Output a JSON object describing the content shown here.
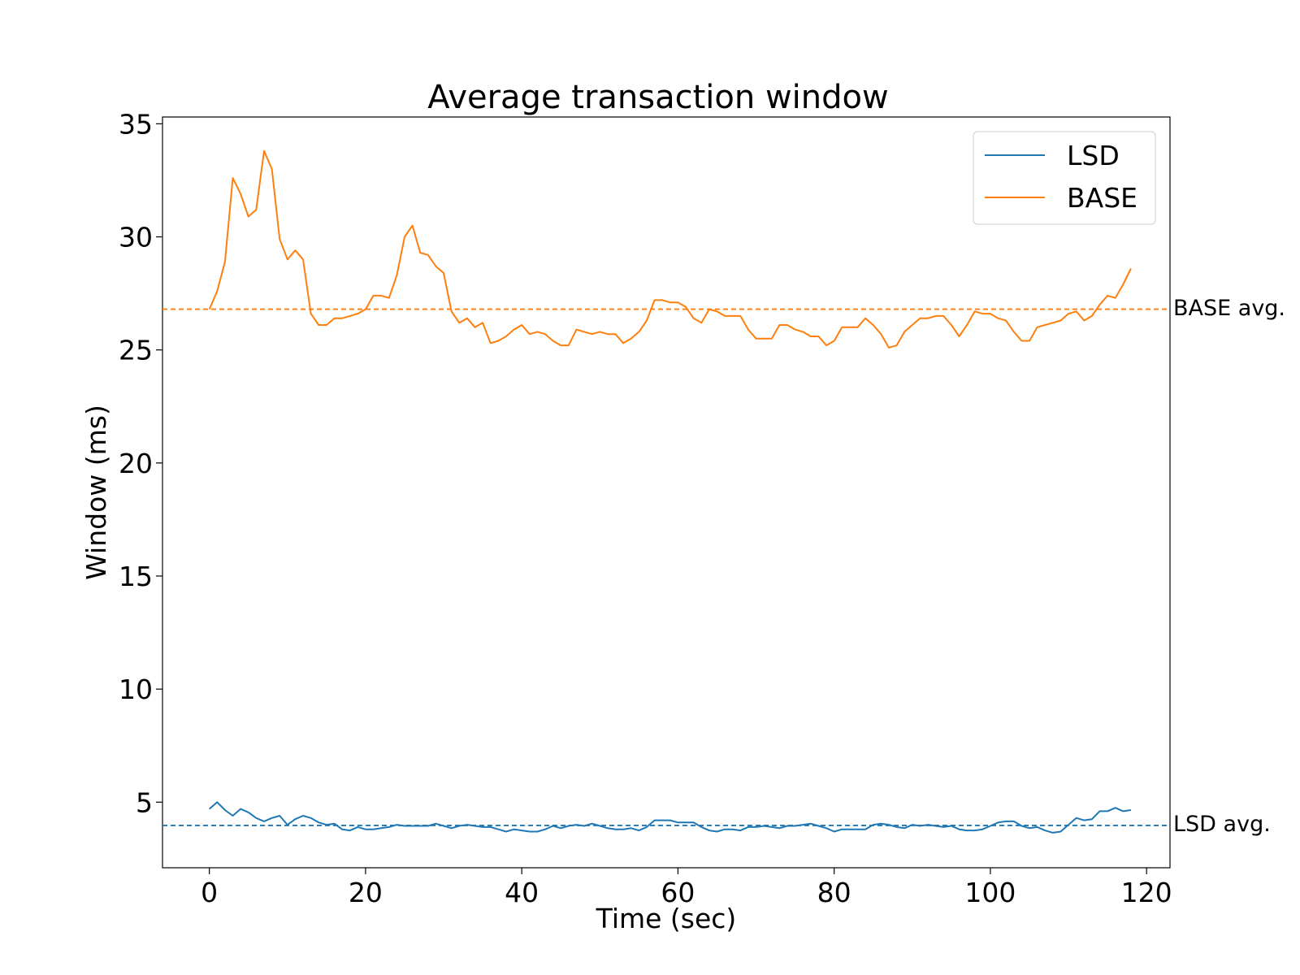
{
  "chart_data": {
    "type": "line",
    "title": "Average transaction window",
    "xlabel": "Time (sec)",
    "ylabel": "Window (ms)",
    "xlim": [
      -6,
      123
    ],
    "ylim": [
      2.1,
      35.3
    ],
    "xticks": [
      0,
      20,
      40,
      60,
      80,
      100,
      120
    ],
    "yticks": [
      5,
      10,
      15,
      20,
      25,
      30,
      35
    ],
    "grid": false,
    "legend_position": "top-right",
    "series": [
      {
        "name": "LSD",
        "color": "#1f77b4",
        "x": [
          0,
          1,
          2,
          3,
          4,
          5,
          6,
          7,
          8,
          9,
          10,
          11,
          12,
          13,
          14,
          15,
          16,
          17,
          18,
          19,
          20,
          21,
          22,
          23,
          24,
          25,
          26,
          27,
          28,
          29,
          30,
          31,
          32,
          33,
          34,
          35,
          36,
          37,
          38,
          39,
          40,
          41,
          42,
          43,
          44,
          45,
          46,
          47,
          48,
          49,
          50,
          51,
          52,
          53,
          54,
          55,
          56,
          57,
          58,
          59,
          60,
          61,
          62,
          63,
          64,
          65,
          66,
          67,
          68,
          69,
          70,
          71,
          72,
          73,
          74,
          75,
          76,
          77,
          78,
          79,
          80,
          81,
          82,
          83,
          84,
          85,
          86,
          87,
          88,
          89,
          90,
          91,
          92,
          93,
          94,
          95,
          96,
          97,
          98,
          99,
          100,
          101,
          102,
          103,
          104,
          105,
          106,
          107,
          108,
          109,
          110,
          111,
          112,
          113,
          114,
          115,
          116,
          117,
          118
        ],
        "y": [
          4.7,
          5.0,
          4.65,
          4.4,
          4.7,
          4.55,
          4.3,
          4.15,
          4.3,
          4.4,
          4.0,
          4.25,
          4.4,
          4.3,
          4.1,
          4.0,
          4.05,
          3.8,
          3.75,
          3.9,
          3.8,
          3.8,
          3.85,
          3.9,
          4.0,
          3.95,
          3.95,
          3.95,
          3.95,
          4.05,
          3.95,
          3.85,
          3.95,
          4.0,
          3.95,
          3.9,
          3.9,
          3.8,
          3.7,
          3.8,
          3.75,
          3.7,
          3.7,
          3.8,
          3.95,
          3.85,
          3.95,
          4.0,
          3.95,
          4.05,
          3.95,
          3.85,
          3.8,
          3.8,
          3.85,
          3.75,
          3.9,
          4.2,
          4.2,
          4.2,
          4.1,
          4.1,
          4.1,
          3.9,
          3.75,
          3.7,
          3.8,
          3.8,
          3.75,
          3.9,
          3.9,
          3.95,
          3.9,
          3.85,
          3.95,
          3.95,
          4.0,
          4.05,
          3.95,
          3.85,
          3.7,
          3.8,
          3.8,
          3.8,
          3.8,
          4.0,
          4.05,
          4.0,
          3.9,
          3.85,
          4.0,
          3.95,
          4.0,
          3.95,
          3.9,
          3.95,
          3.8,
          3.75,
          3.75,
          3.8,
          3.95,
          4.1,
          4.15,
          4.15,
          3.95,
          3.85,
          3.9,
          3.75,
          3.65,
          3.7,
          4.0,
          4.3,
          4.2,
          4.25,
          4.6,
          4.6,
          4.75,
          4.6,
          4.65
        ]
      },
      {
        "name": "BASE",
        "color": "#ff7f0e",
        "x": [
          0,
          1,
          2,
          3,
          4,
          5,
          6,
          7,
          8,
          9,
          10,
          11,
          12,
          13,
          14,
          15,
          16,
          17,
          18,
          19,
          20,
          21,
          22,
          23,
          24,
          25,
          26,
          27,
          28,
          29,
          30,
          31,
          32,
          33,
          34,
          35,
          36,
          37,
          38,
          39,
          40,
          41,
          42,
          43,
          44,
          45,
          46,
          47,
          48,
          49,
          50,
          51,
          52,
          53,
          54,
          55,
          56,
          57,
          58,
          59,
          60,
          61,
          62,
          63,
          64,
          65,
          66,
          67,
          68,
          69,
          70,
          71,
          72,
          73,
          74,
          75,
          76,
          77,
          78,
          79,
          80,
          81,
          82,
          83,
          84,
          85,
          86,
          87,
          88,
          89,
          90,
          91,
          92,
          93,
          94,
          95,
          96,
          97,
          98,
          99,
          100,
          101,
          102,
          103,
          104,
          105,
          106,
          107,
          108,
          109,
          110,
          111,
          112,
          113,
          114,
          115,
          116,
          117,
          118
        ],
        "y": [
          26.8,
          27.6,
          28.9,
          32.6,
          31.9,
          30.9,
          31.2,
          33.8,
          33.0,
          29.9,
          29.0,
          29.4,
          29.0,
          26.6,
          26.1,
          26.1,
          26.4,
          26.4,
          26.5,
          26.6,
          26.8,
          27.4,
          27.4,
          27.3,
          28.3,
          30.0,
          30.5,
          29.3,
          29.2,
          28.7,
          28.4,
          26.7,
          26.2,
          26.4,
          26.0,
          26.2,
          25.3,
          25.4,
          25.6,
          25.9,
          26.1,
          25.7,
          25.8,
          25.7,
          25.4,
          25.2,
          25.2,
          25.9,
          25.8,
          25.7,
          25.8,
          25.7,
          25.7,
          25.3,
          25.5,
          25.8,
          26.3,
          27.2,
          27.2,
          27.1,
          27.1,
          26.9,
          26.4,
          26.2,
          26.8,
          26.7,
          26.5,
          26.5,
          26.5,
          25.9,
          25.5,
          25.5,
          25.5,
          26.1,
          26.1,
          25.9,
          25.8,
          25.6,
          25.6,
          25.2,
          25.4,
          26.0,
          26.0,
          26.0,
          26.4,
          26.1,
          25.7,
          25.1,
          25.2,
          25.8,
          26.1,
          26.4,
          26.4,
          26.5,
          26.5,
          26.1,
          25.6,
          26.1,
          26.7,
          26.6,
          26.6,
          26.4,
          26.3,
          25.8,
          25.4,
          25.4,
          26.0,
          26.1,
          26.2,
          26.3,
          26.6,
          26.7,
          26.3,
          26.5,
          27.0,
          27.4,
          27.3,
          27.9,
          28.6
        ]
      }
    ],
    "reference_lines": [
      {
        "label": "BASE avg.",
        "y": 26.8,
        "color": "#ff7f0e",
        "style": "dashed"
      },
      {
        "label": "LSD avg.",
        "y": 3.97,
        "color": "#1f77b4",
        "style": "dashed"
      }
    ]
  }
}
